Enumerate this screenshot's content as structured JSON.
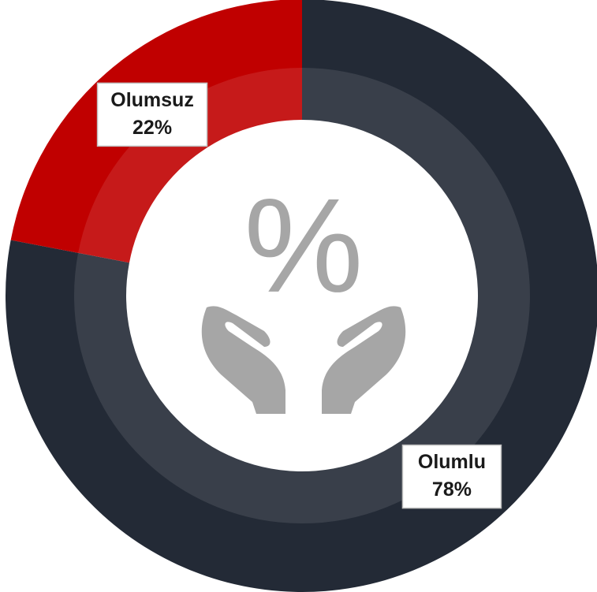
{
  "chart_data": {
    "type": "donut",
    "categories": [
      "Olumlu",
      "Olumsuz"
    ],
    "values": [
      78,
      22
    ],
    "value_labels": [
      "78%",
      "22%"
    ],
    "colors": [
      "#232a36",
      "#c00000"
    ],
    "center_label": "%"
  }
}
